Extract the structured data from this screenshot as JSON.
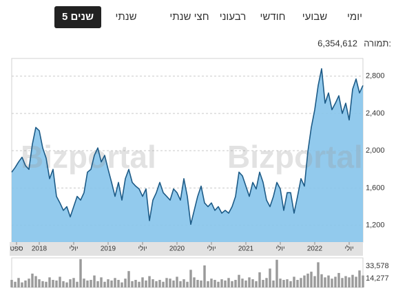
{
  "tabs": [
    {
      "label": "יומי",
      "selected": false
    },
    {
      "label": "שבועי",
      "selected": false
    },
    {
      "label": "חודשי",
      "selected": false
    },
    {
      "label": "רבעוני",
      "selected": false
    },
    {
      "label": "חצי שנתי",
      "selected": false
    },
    {
      "label": "שנתי",
      "selected": false
    },
    {
      "label": "5 שנים",
      "selected": true
    }
  ],
  "turnover": {
    "label": "תמורה:",
    "value": "6,354,612"
  },
  "watermark": "Bizportal",
  "chart_data": [
    {
      "type": "area",
      "color": "#1c5a86",
      "area_color": "#86c4eb",
      "x": [
        2017.6,
        2017.65,
        2017.7,
        2017.75,
        2017.8,
        2017.85,
        2017.9,
        2017.95,
        2018.0,
        2018.05,
        2018.1,
        2018.15,
        2018.2,
        2018.25,
        2018.3,
        2018.35,
        2018.4,
        2018.45,
        2018.5,
        2018.55,
        2018.6,
        2018.65,
        2018.7,
        2018.75,
        2018.8,
        2018.85,
        2018.9,
        2018.95,
        2019.0,
        2019.05,
        2019.1,
        2019.15,
        2019.2,
        2019.25,
        2019.3,
        2019.35,
        2019.4,
        2019.45,
        2019.5,
        2019.55,
        2019.6,
        2019.65,
        2019.7,
        2019.75,
        2019.8,
        2019.85,
        2019.9,
        2019.95,
        2020.0,
        2020.05,
        2020.1,
        2020.15,
        2020.2,
        2020.25,
        2020.3,
        2020.35,
        2020.4,
        2020.45,
        2020.5,
        2020.55,
        2020.6,
        2020.65,
        2020.7,
        2020.75,
        2020.8,
        2020.85,
        2020.9,
        2020.95,
        2021.0,
        2021.05,
        2021.1,
        2021.15,
        2021.2,
        2021.25,
        2021.3,
        2021.35,
        2021.4,
        2021.45,
        2021.5,
        2021.55,
        2021.6,
        2021.65,
        2021.7,
        2021.75,
        2021.8,
        2021.85,
        2021.9,
        2021.95,
        2022.0,
        2022.05,
        2022.1,
        2022.15,
        2022.2,
        2022.25,
        2022.3,
        2022.35,
        2022.4,
        2022.45,
        2022.5,
        2022.55,
        2022.6,
        2022.65,
        2022.7
      ],
      "values": [
        1770,
        1820,
        1880,
        1930,
        1840,
        1800,
        2070,
        2250,
        2215,
        2030,
        1920,
        1700,
        1800,
        1510,
        1440,
        1360,
        1400,
        1290,
        1400,
        1510,
        1470,
        1550,
        1770,
        1800,
        1950,
        2030,
        1880,
        1950,
        1800,
        1660,
        1510,
        1660,
        1470,
        1700,
        1800,
        1660,
        1620,
        1590,
        1510,
        1590,
        1250,
        1470,
        1550,
        1660,
        1550,
        1510,
        1470,
        1590,
        1550,
        1470,
        1700,
        1510,
        1210,
        1360,
        1510,
        1620,
        1440,
        1400,
        1440,
        1360,
        1400,
        1330,
        1360,
        1330,
        1400,
        1510,
        1770,
        1730,
        1620,
        1510,
        1660,
        1590,
        1770,
        1660,
        1470,
        1400,
        1510,
        1660,
        1590,
        1360,
        1550,
        1550,
        1330,
        1510,
        1700,
        1620,
        1990,
        2250,
        2440,
        2700,
        2880,
        2510,
        2620,
        2440,
        2510,
        2590,
        2400,
        2510,
        2330,
        2660,
        2770,
        2620,
        2700
      ],
      "xlim": [
        2017.6,
        2022.7
      ],
      "xticks": [
        {
          "value": 2017.67,
          "label": "ספט"
        },
        2018,
        {
          "value": 2018.5,
          "label": "יולי"
        },
        2019,
        {
          "value": 2019.5,
          "label": "יולי"
        },
        2020,
        {
          "value": 2020.5,
          "label": "יולי"
        },
        2021,
        {
          "value": 2021.5,
          "label": "יולי"
        },
        2022,
        {
          "value": 2022.5,
          "label": "יולי"
        }
      ],
      "ylim": [
        1020,
        2990
      ],
      "yticks": [
        {
          "value": 1200,
          "label": "1,200"
        },
        {
          "value": 1600,
          "label": "1,600"
        },
        {
          "value": 2000,
          "label": "2,000"
        },
        {
          "value": 2400,
          "label": "2,400"
        },
        {
          "value": 2800,
          "label": "2,800"
        }
      ],
      "grid": true
    },
    {
      "type": "bar",
      "color": "#9a9a9a",
      "x": [
        2017.6,
        2017.65,
        2017.7,
        2017.75,
        2017.8,
        2017.85,
        2017.9,
        2017.95,
        2018.0,
        2018.05,
        2018.1,
        2018.15,
        2018.2,
        2018.25,
        2018.3,
        2018.35,
        2018.4,
        2018.45,
        2018.5,
        2018.55,
        2018.6,
        2018.65,
        2018.7,
        2018.75,
        2018.8,
        2018.85,
        2018.9,
        2018.95,
        2019.0,
        2019.05,
        2019.1,
        2019.15,
        2019.2,
        2019.25,
        2019.3,
        2019.35,
        2019.4,
        2019.45,
        2019.5,
        2019.55,
        2019.6,
        2019.65,
        2019.7,
        2019.75,
        2019.8,
        2019.85,
        2019.9,
        2019.95,
        2020.0,
        2020.05,
        2020.1,
        2020.15,
        2020.2,
        2020.25,
        2020.3,
        2020.35,
        2020.4,
        2020.45,
        2020.5,
        2020.55,
        2020.6,
        2020.65,
        2020.7,
        2020.75,
        2020.8,
        2020.85,
        2020.9,
        2020.95,
        2021.0,
        2021.05,
        2021.1,
        2021.15,
        2021.2,
        2021.25,
        2021.3,
        2021.35,
        2021.4,
        2021.45,
        2021.5,
        2021.55,
        2021.6,
        2021.65,
        2021.7,
        2021.75,
        2021.8,
        2021.85,
        2021.9,
        2021.95,
        2022.0,
        2022.05,
        2022.1,
        2022.15,
        2022.2,
        2022.25,
        2022.3,
        2022.35,
        2022.4,
        2022.45,
        2022.5,
        2022.55,
        2022.6,
        2022.65,
        2022.7
      ],
      "values": [
        12000,
        9000,
        15000,
        8000,
        11000,
        14000,
        22000,
        18000,
        13000,
        10000,
        9000,
        16000,
        12000,
        11000,
        17000,
        10000,
        8000,
        13000,
        15000,
        9000,
        45000,
        14000,
        11000,
        12000,
        19000,
        10000,
        16000,
        9000,
        13000,
        11000,
        15000,
        12000,
        8000,
        14000,
        26000,
        10000,
        12000,
        9000,
        16000,
        11000,
        18000,
        13000,
        10000,
        12000,
        9000,
        15000,
        14000,
        11000,
        17000,
        10000,
        13000,
        9000,
        28000,
        16000,
        12000,
        11000,
        35000,
        10000,
        14000,
        12000,
        9000,
        13000,
        11000,
        15000,
        10000,
        12000,
        20000,
        14000,
        11000,
        16000,
        13000,
        10000,
        24000,
        12000,
        15000,
        30000,
        11000,
        44000,
        14000,
        12000,
        13000,
        10000,
        17000,
        12000,
        15000,
        19000,
        22000,
        25000,
        18000,
        40000,
        21000,
        16000,
        19000,
        14000,
        17000,
        23000,
        15000,
        18000,
        16000,
        20000,
        17000,
        27000,
        19000
      ],
      "xlim": [
        2017.6,
        2022.7
      ],
      "ylim": [
        0,
        47000
      ],
      "yticks": [
        {
          "value": 14277,
          "label": "14,277"
        },
        {
          "value": 33578,
          "label": "33,578"
        }
      ]
    }
  ]
}
